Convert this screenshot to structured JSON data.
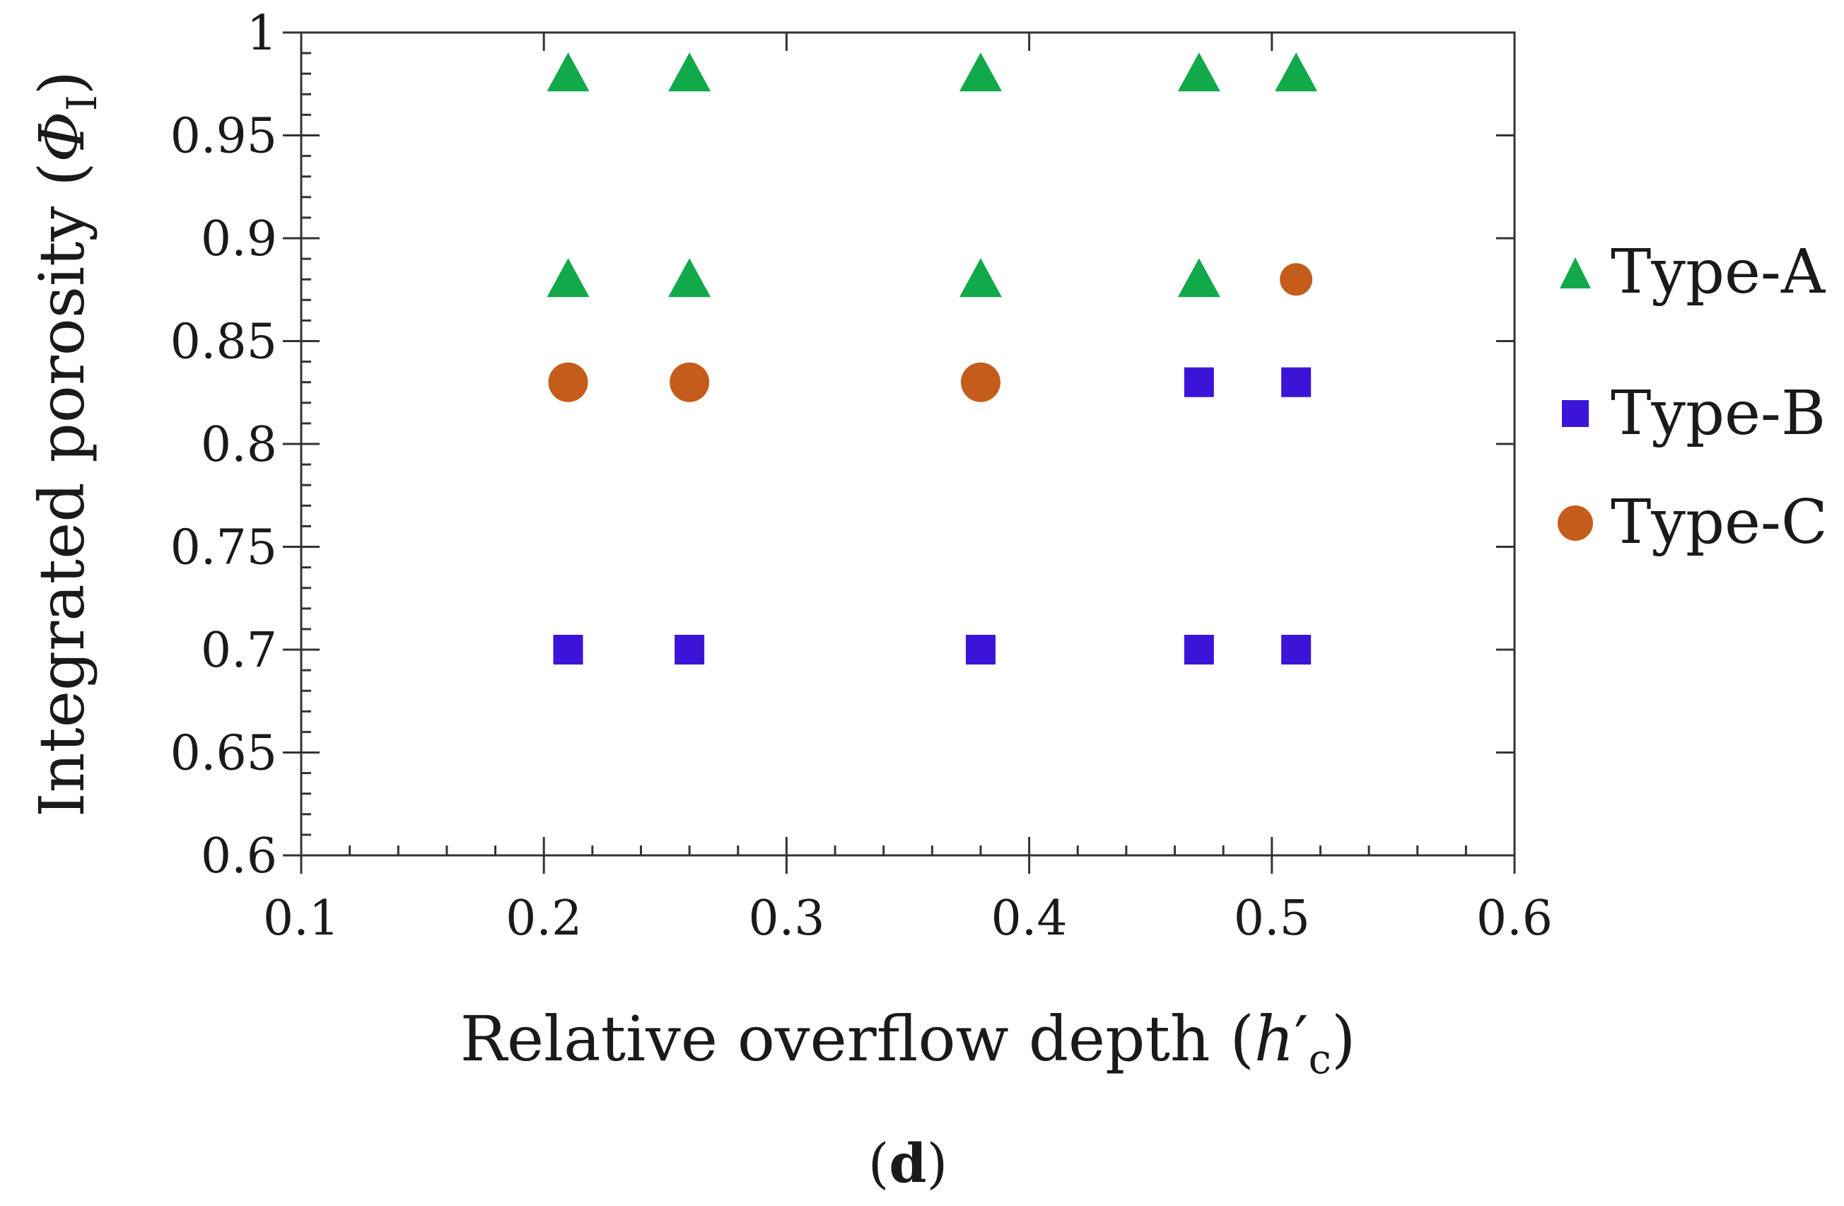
{
  "chart_data": {
    "type": "scatter",
    "title": "",
    "xlabel": {
      "main": "Relative overflow depth (",
      "symbol": "h",
      "prime": "′",
      "sub": "c",
      "close": ")"
    },
    "ylabel": {
      "main": "Integrated porosity (",
      "symbol": "Φ",
      "sub": "I",
      "close": ")"
    },
    "xlim": [
      0.1,
      0.6
    ],
    "ylim": [
      0.6,
      1.0
    ],
    "xticks": [
      "0.1",
      "0.2",
      "0.3",
      "0.4",
      "0.5",
      "0.6"
    ],
    "yticks": [
      "0.6",
      "0.65",
      "0.7",
      "0.75",
      "0.8",
      "0.85",
      "0.9",
      "0.95",
      "1"
    ],
    "grid": false,
    "legend_position": "right",
    "series": [
      {
        "name": "Type-A",
        "marker": "triangle",
        "color": "#12a94a",
        "points": [
          {
            "x": 0.21,
            "y": 0.98
          },
          {
            "x": 0.26,
            "y": 0.98
          },
          {
            "x": 0.38,
            "y": 0.98
          },
          {
            "x": 0.47,
            "y": 0.98
          },
          {
            "x": 0.51,
            "y": 0.98
          },
          {
            "x": 0.21,
            "y": 0.88
          },
          {
            "x": 0.26,
            "y": 0.88
          },
          {
            "x": 0.38,
            "y": 0.88
          },
          {
            "x": 0.47,
            "y": 0.88
          }
        ]
      },
      {
        "name": "Type-B",
        "marker": "square",
        "color": "#3c14d8",
        "points": [
          {
            "x": 0.47,
            "y": 0.83
          },
          {
            "x": 0.51,
            "y": 0.83
          },
          {
            "x": 0.21,
            "y": 0.7
          },
          {
            "x": 0.26,
            "y": 0.7
          },
          {
            "x": 0.38,
            "y": 0.7
          },
          {
            "x": 0.47,
            "y": 0.7
          },
          {
            "x": 0.51,
            "y": 0.7
          }
        ]
      },
      {
        "name": "Type-C",
        "marker": "circle",
        "color": "#c45c1c",
        "points": [
          {
            "x": 0.51,
            "y": 0.88
          },
          {
            "x": 0.21,
            "y": 0.83
          },
          {
            "x": 0.26,
            "y": 0.83
          },
          {
            "x": 0.38,
            "y": 0.83
          }
        ]
      }
    ],
    "panel_label": {
      "open": "(",
      "letter": "d",
      "close": ")"
    }
  }
}
